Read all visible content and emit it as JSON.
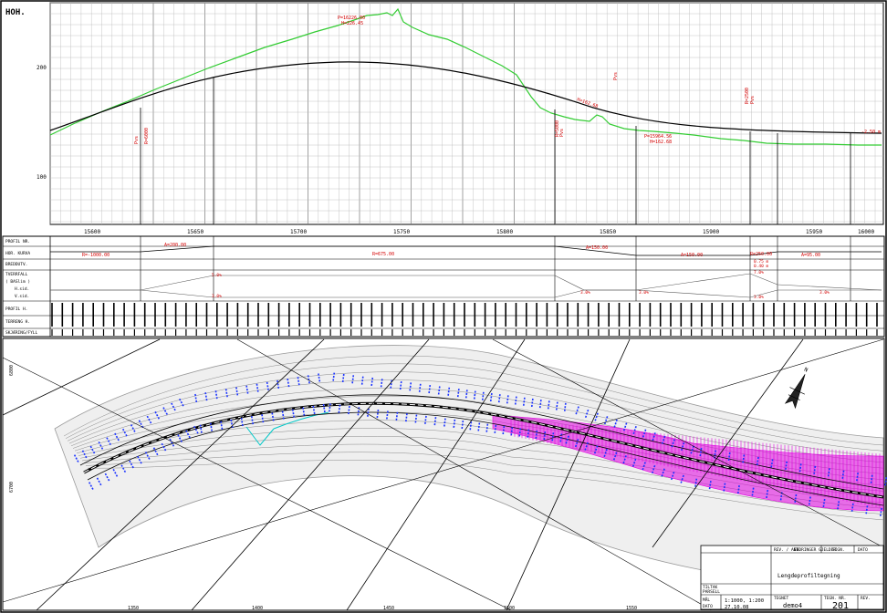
{
  "profile": {
    "axis_label": "HOH.",
    "y_ticks": [
      {
        "value": 200,
        "label": "200"
      },
      {
        "value": 100,
        "label": "100"
      }
    ],
    "x_ticks": [
      {
        "value": 15600,
        "label": "15600"
      },
      {
        "value": 15650,
        "label": "15650"
      },
      {
        "value": 15700,
        "label": "15700"
      },
      {
        "value": 15750,
        "label": "15750"
      },
      {
        "value": 15800,
        "label": "15800"
      },
      {
        "value": 15850,
        "label": "15850"
      },
      {
        "value": 15900,
        "label": "15900"
      },
      {
        "value": 15950,
        "label": "15950"
      },
      {
        "value": 16000,
        "label": "16000"
      }
    ],
    "annotations": [
      {
        "name": "peak-annotation",
        "text": "P=16226.00",
        "sub": "H=226.45",
        "color": "#d40000"
      },
      {
        "name": "pvs-left",
        "text": "Pvs",
        "sub": "R=6000",
        "color": "#d40000"
      },
      {
        "name": "pvs-mid",
        "text": "Pvs",
        "sub": "R=5000",
        "color": "#d40000"
      },
      {
        "name": "pvs-right",
        "text": "Pvs",
        "sub": "R=2500",
        "color": "#d40000"
      },
      {
        "name": "low-annotation",
        "text": "P=15964.56",
        "sub": "H=162.68",
        "color": "#d40000"
      },
      {
        "name": "end-annotation",
        "text": "-2.50 m",
        "sub": "",
        "color": "#d40000"
      }
    ]
  },
  "bands": {
    "rows": [
      "PROFIL NR.",
      "HOR. KURVA",
      "BREDDUTV.",
      "TVERRFALL",
      "( BASlim )",
      "H.sid.",
      "V.sid.",
      "PROFIL H.",
      "TERRENG H.",
      "SKJÆRING/FYLL"
    ],
    "curve_labels": [
      "R=-1000.00",
      "A=200.00",
      "R=675.00",
      "A=150.00",
      "A=150.00",
      "R=250.00",
      "A=95.00"
    ],
    "widen_labels": [
      "0.75 m",
      "0.40 m"
    ],
    "slope_labels": [
      "5.0%",
      "3.0%",
      "3.0%",
      "3.0%",
      "7.0%",
      "3.0%",
      "3.0%",
      "3.0%"
    ]
  },
  "plan": {
    "north_label": "N",
    "grid_labels": [
      "6800",
      "6700"
    ],
    "bottom_labels": [
      "1350",
      "1400",
      "1450",
      "1500",
      "1550"
    ]
  },
  "title_block": {
    "header": [
      "REV. / ANT.",
      "ENDRINGER GJELDER",
      "SIGN.",
      "DATO"
    ],
    "description": "Lengdeprofiltegning",
    "labels": {
      "tiltak": "TILTAK",
      "parsell": "PARSELL",
      "maal": "MÅL",
      "dato": "DATO",
      "tegn": "TEGNET",
      "tegn_nr": "TEGN. NR.",
      "rev": "REV."
    },
    "scale": "1:1000, 1:200",
    "date": "27.10.08",
    "drawing_name": "demo4",
    "drawing_number": "201"
  },
  "colors": {
    "grid": "#9a9a9a",
    "terrain": "#33cc33",
    "road": "#000000",
    "annotation": "#d40000",
    "blue_marks": "#1a33ff",
    "magenta_fill": "#e000e0",
    "cyan": "#00c8c8",
    "contours": "#8a8a8a"
  }
}
